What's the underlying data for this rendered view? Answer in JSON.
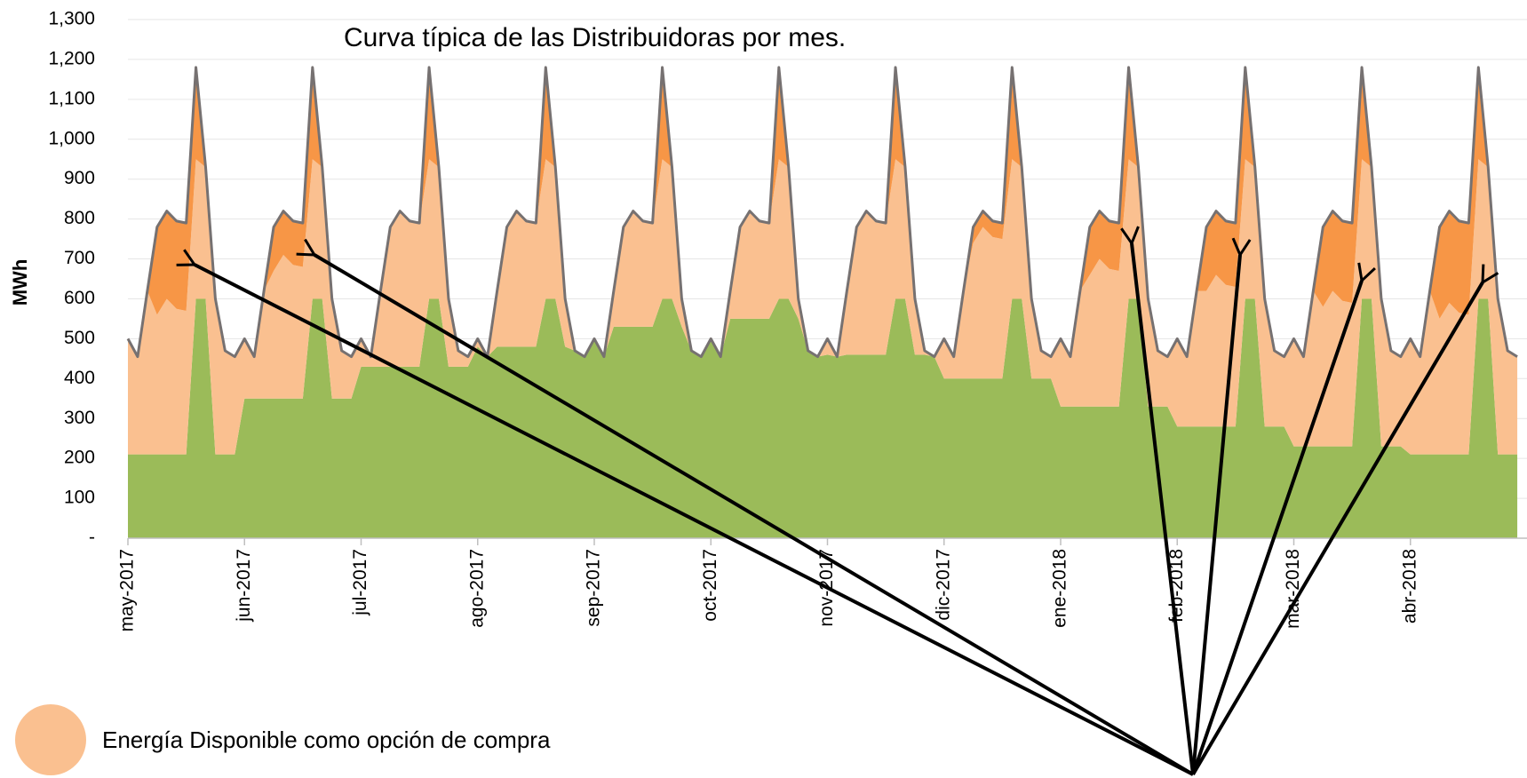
{
  "chart_data": {
    "type": "stacked_area",
    "title": "Curva típica de las Distribuidoras por mes.",
    "ylabel": "MWh",
    "categories": [
      "may-2017",
      null,
      null,
      null,
      null,
      null,
      null,
      null,
      null,
      null,
      null,
      null,
      "jun-2017",
      null,
      null,
      null,
      null,
      null,
      null,
      null,
      null,
      null,
      null,
      null,
      "jul-2017",
      null,
      null,
      null,
      null,
      null,
      null,
      null,
      null,
      null,
      null,
      null,
      "ago-2017",
      null,
      null,
      null,
      null,
      null,
      null,
      null,
      null,
      null,
      null,
      null,
      "sep-2017",
      null,
      null,
      null,
      null,
      null,
      null,
      null,
      null,
      null,
      null,
      null,
      "oct-2017",
      null,
      null,
      null,
      null,
      null,
      null,
      null,
      null,
      null,
      null,
      null,
      "nov-2017",
      null,
      null,
      null,
      null,
      null,
      null,
      null,
      null,
      null,
      null,
      null,
      "dic-2017",
      null,
      null,
      null,
      null,
      null,
      null,
      null,
      null,
      null,
      null,
      null,
      "ene-2018",
      null,
      null,
      null,
      null,
      null,
      null,
      null,
      null,
      null,
      null,
      null,
      "feb-2018",
      null,
      null,
      null,
      null,
      null,
      null,
      null,
      null,
      null,
      null,
      null,
      "mar-2018",
      null,
      null,
      null,
      null,
      null,
      null,
      null,
      null,
      null,
      null,
      null,
      "abr-2018",
      null,
      null,
      null,
      null,
      null,
      null,
      null,
      null,
      null,
      null,
      null
    ],
    "series": [
      {
        "color": "#9bbb59",
        "values": [
          210,
          210,
          210,
          210,
          210,
          210,
          210,
          600,
          600,
          210,
          210,
          210,
          350,
          350,
          350,
          350,
          350,
          350,
          350,
          600,
          600,
          350,
          350,
          350,
          430,
          430,
          430,
          430,
          430,
          430,
          430,
          600,
          600,
          430,
          430,
          430,
          480,
          455,
          480,
          480,
          480,
          480,
          480,
          600,
          600,
          480,
          470,
          455,
          500,
          455,
          530,
          530,
          530,
          530,
          530,
          600,
          600,
          530,
          470,
          455,
          500,
          455,
          550,
          550,
          550,
          550,
          550,
          600,
          600,
          550,
          470,
          455,
          460,
          455,
          460,
          460,
          460,
          460,
          460,
          600,
          600,
          460,
          460,
          455,
          400,
          400,
          400,
          400,
          400,
          400,
          400,
          600,
          600,
          400,
          400,
          400,
          330,
          330,
          330,
          330,
          330,
          330,
          330,
          600,
          600,
          330,
          330,
          330,
          280,
          280,
          280,
          280,
          280,
          280,
          280,
          600,
          600,
          280,
          280,
          280,
          230,
          230,
          230,
          230,
          230,
          230,
          230,
          600,
          600,
          230,
          230,
          230,
          210,
          210,
          210,
          210,
          210,
          210,
          210,
          600,
          600,
          210,
          210,
          210
        ]
      },
      {
        "name": "Energía Disponible como opción de compra",
        "color": "#fac090",
        "values": [
          290,
          245,
          410,
          350,
          390,
          365,
          360,
          350,
          330,
          390,
          260,
          245,
          150,
          105,
          270,
          320,
          360,
          335,
          330,
          350,
          330,
          250,
          120,
          105,
          70,
          25,
          190,
          350,
          390,
          365,
          360,
          350,
          330,
          170,
          40,
          25,
          20,
          0,
          140,
          300,
          340,
          315,
          310,
          350,
          330,
          120,
          0,
          0,
          0,
          0,
          90,
          250,
          290,
          265,
          260,
          350,
          330,
          70,
          0,
          0,
          0,
          0,
          70,
          230,
          270,
          245,
          240,
          350,
          330,
          50,
          0,
          0,
          40,
          0,
          160,
          320,
          360,
          335,
          330,
          350,
          330,
          140,
          10,
          0,
          100,
          55,
          220,
          340,
          380,
          355,
          350,
          350,
          330,
          200,
          70,
          55,
          170,
          125,
          290,
          330,
          370,
          345,
          340,
          350,
          330,
          270,
          140,
          125,
          220,
          175,
          340,
          340,
          380,
          355,
          350,
          350,
          330,
          320,
          190,
          175,
          270,
          225,
          390,
          350,
          390,
          365,
          360,
          350,
          330,
          370,
          240,
          225,
          290,
          245,
          410,
          340,
          380,
          355,
          350,
          350,
          330,
          390,
          260,
          245
        ]
      },
      {
        "color": "#f79646",
        "values": [
          0,
          0,
          0,
          220,
          220,
          220,
          220,
          230,
          0,
          0,
          0,
          0,
          0,
          0,
          0,
          110,
          110,
          110,
          110,
          230,
          0,
          0,
          0,
          0,
          0,
          0,
          0,
          0,
          0,
          0,
          0,
          230,
          0,
          0,
          0,
          0,
          0,
          0,
          0,
          0,
          0,
          0,
          0,
          230,
          0,
          0,
          0,
          0,
          0,
          0,
          0,
          0,
          0,
          0,
          0,
          230,
          0,
          0,
          0,
          0,
          0,
          0,
          0,
          0,
          0,
          0,
          0,
          230,
          0,
          0,
          0,
          0,
          0,
          0,
          0,
          0,
          0,
          0,
          0,
          230,
          0,
          0,
          0,
          0,
          0,
          0,
          0,
          40,
          40,
          40,
          40,
          230,
          0,
          0,
          0,
          0,
          0,
          0,
          0,
          120,
          120,
          120,
          120,
          230,
          0,
          0,
          0,
          0,
          0,
          0,
          0,
          160,
          160,
          160,
          160,
          230,
          0,
          0,
          0,
          0,
          0,
          0,
          0,
          200,
          200,
          200,
          200,
          230,
          0,
          0,
          0,
          0,
          0,
          0,
          0,
          230,
          230,
          230,
          230,
          230,
          0,
          0,
          0,
          0
        ]
      }
    ],
    "outline_color": "#767171",
    "ylim": [
      0,
      1300
    ],
    "yticks": [
      {
        "value": 0,
        "label": "-"
      },
      100,
      200,
      300,
      400,
      500,
      600,
      700,
      800,
      900,
      {
        "value": 1000,
        "label": "1,000"
      },
      {
        "value": 1100,
        "label": "1,100"
      },
      {
        "value": 1200,
        "label": "1,200"
      },
      {
        "value": 1300,
        "label": "1,300"
      }
    ],
    "grid": true
  }
}
